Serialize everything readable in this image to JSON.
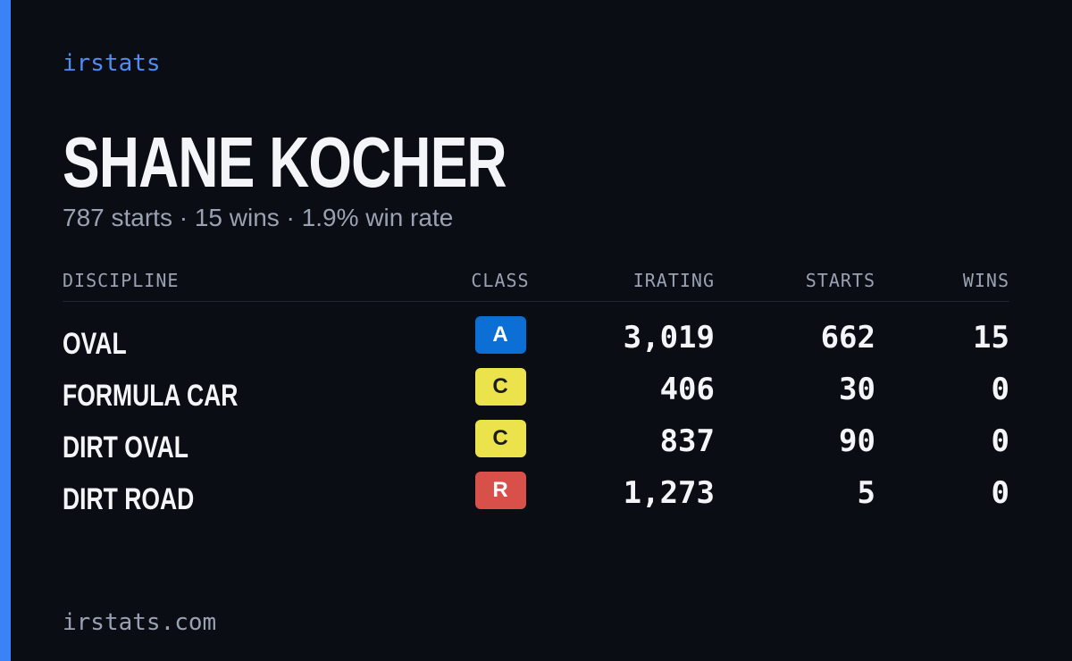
{
  "brand": "irstats",
  "name": "SHANE KOCHER",
  "summary": "787 starts · 15 wins · 1.9% win rate",
  "table": {
    "headers": [
      "DISCIPLINE",
      "CLASS",
      "IRATING",
      "STARTS",
      "WINS"
    ],
    "rows": [
      {
        "discipline": "OVAL",
        "class": "A",
        "badge_color": "#0b6fd6",
        "irating": "3,019",
        "starts": "662",
        "wins": "15"
      },
      {
        "discipline": "FORMULA CAR",
        "class": "C",
        "badge_color": "#ece34c",
        "irating": "406",
        "starts": "30",
        "wins": "0"
      },
      {
        "discipline": "DIRT OVAL",
        "class": "C",
        "badge_color": "#ece34c",
        "irating": "837",
        "starts": "90",
        "wins": "0"
      },
      {
        "discipline": "DIRT ROAD",
        "class": "R",
        "badge_color": "#d9504a",
        "irating": "1,273",
        "starts": "5",
        "wins": "0"
      }
    ]
  },
  "footer": "irstats.com"
}
